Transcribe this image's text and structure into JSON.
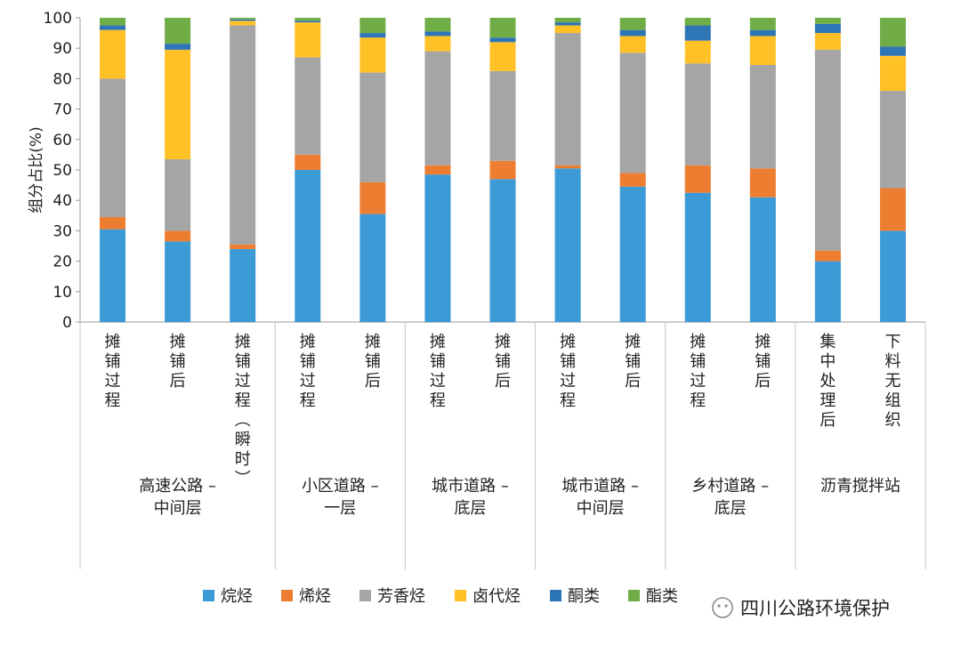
{
  "watermark": "四川公路环境保护",
  "chart_data": {
    "type": "stacked-bar",
    "title": "",
    "xlabel": "",
    "ylabel": "组分占比(%)",
    "ylim": [
      0,
      100
    ],
    "yticks": [
      0,
      10,
      20,
      30,
      40,
      50,
      60,
      70,
      80,
      90,
      100
    ],
    "grid": false,
    "legend_position": "bottom",
    "series": [
      {
        "name": "烷烃",
        "color": "#3c9ad6"
      },
      {
        "name": "烯烃",
        "color": "#ed7d31"
      },
      {
        "name": "芳香烃",
        "color": "#a5a5a5"
      },
      {
        "name": "卤代烃",
        "color": "#ffc125"
      },
      {
        "name": "酮类",
        "color": "#2e75b6"
      },
      {
        "name": "酯类",
        "color": "#70ad47"
      }
    ],
    "groups": [
      {
        "label_lines": [
          "高速公路 –",
          "中间层"
        ],
        "bar_count": 3
      },
      {
        "label_lines": [
          "小区道路 –",
          "一层"
        ],
        "bar_count": 2
      },
      {
        "label_lines": [
          "城市道路 –",
          "底层"
        ],
        "bar_count": 2
      },
      {
        "label_lines": [
          "城市道路 –",
          "中间层"
        ],
        "bar_count": 2
      },
      {
        "label_lines": [
          "乡村道路 –",
          "底层"
        ],
        "bar_count": 2
      },
      {
        "label_lines": [
          "沥青搅拌站"
        ],
        "bar_count": 2
      }
    ],
    "categories": [
      {
        "label": "摊铺过程",
        "values": [
          30.5,
          4,
          45.5,
          16,
          1.5,
          2.5
        ]
      },
      {
        "label": "摊铺后",
        "values": [
          26.5,
          3.5,
          23.5,
          36,
          2,
          8.5
        ]
      },
      {
        "label": "摊铺过程(瞬时)",
        "values": [
          24,
          1.5,
          72,
          1.5,
          0.5,
          0.5
        ]
      },
      {
        "label": "摊铺过程",
        "values": [
          50,
          5,
          32,
          11.5,
          0.5,
          1
        ]
      },
      {
        "label": "摊铺后",
        "values": [
          35.5,
          10.5,
          36,
          11.5,
          1.5,
          5
        ]
      },
      {
        "label": "摊铺过程",
        "values": [
          48.5,
          3,
          37.5,
          5,
          1.5,
          4.5
        ]
      },
      {
        "label": "摊铺后",
        "values": [
          47,
          6,
          29.5,
          9.5,
          1.5,
          6.5
        ]
      },
      {
        "label": "摊铺过程",
        "values": [
          50.5,
          1,
          43.5,
          2.5,
          1,
          1.5
        ]
      },
      {
        "label": "摊铺后",
        "values": [
          44.5,
          4.5,
          39.5,
          5.5,
          2,
          4
        ]
      },
      {
        "label": "摊铺过程",
        "values": [
          42.5,
          9,
          33.5,
          7.5,
          5,
          2.5
        ]
      },
      {
        "label": "摊铺后",
        "values": [
          41,
          9.5,
          34,
          9.5,
          2,
          4
        ]
      },
      {
        "label": "集中处理后",
        "values": [
          20,
          3.5,
          66,
          5.5,
          3,
          2
        ]
      },
      {
        "label": "下料无组织",
        "values": [
          30,
          14,
          32,
          11.5,
          3,
          9.5
        ]
      }
    ]
  }
}
